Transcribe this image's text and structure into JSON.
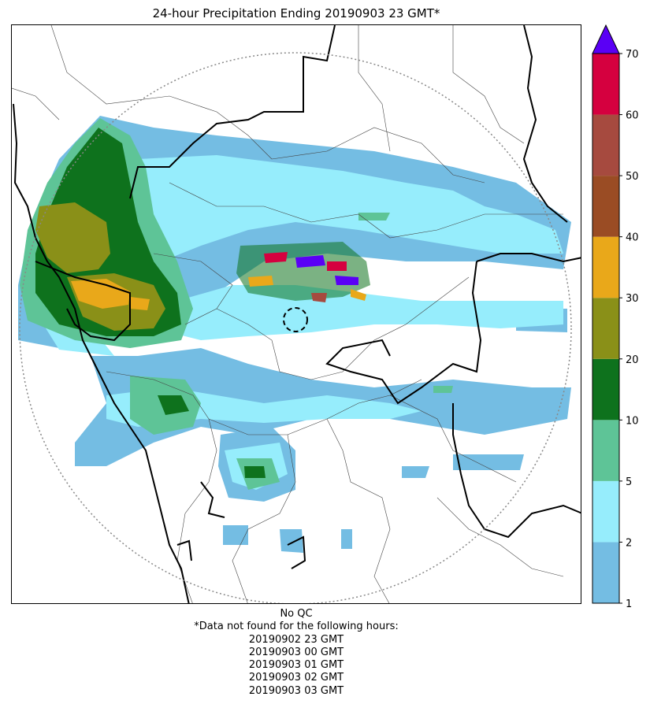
{
  "title": "24-hour Precipitation Ending 20190903 23 GMT*",
  "colorbar": {
    "ticks": [
      "1",
      "2",
      "5",
      "10",
      "20",
      "30",
      "40",
      "50",
      "60",
      "70"
    ],
    "colors": [
      "#74bde3",
      "#96edfc",
      "#5ec497",
      "#0e721d",
      "#8a9018",
      "#e9a81a",
      "#9a4c24",
      "#a64a3f",
      "#d5003f"
    ],
    "extend_color": "#5a00f5"
  },
  "footer": {
    "qc": "No QC",
    "note": "*Data not found for the following hours:",
    "hours": [
      "20190902 23 GMT",
      "20190903 00 GMT",
      "20190903 01 GMT",
      "20190903 02 GMT",
      "20190903 03 GMT"
    ]
  }
}
